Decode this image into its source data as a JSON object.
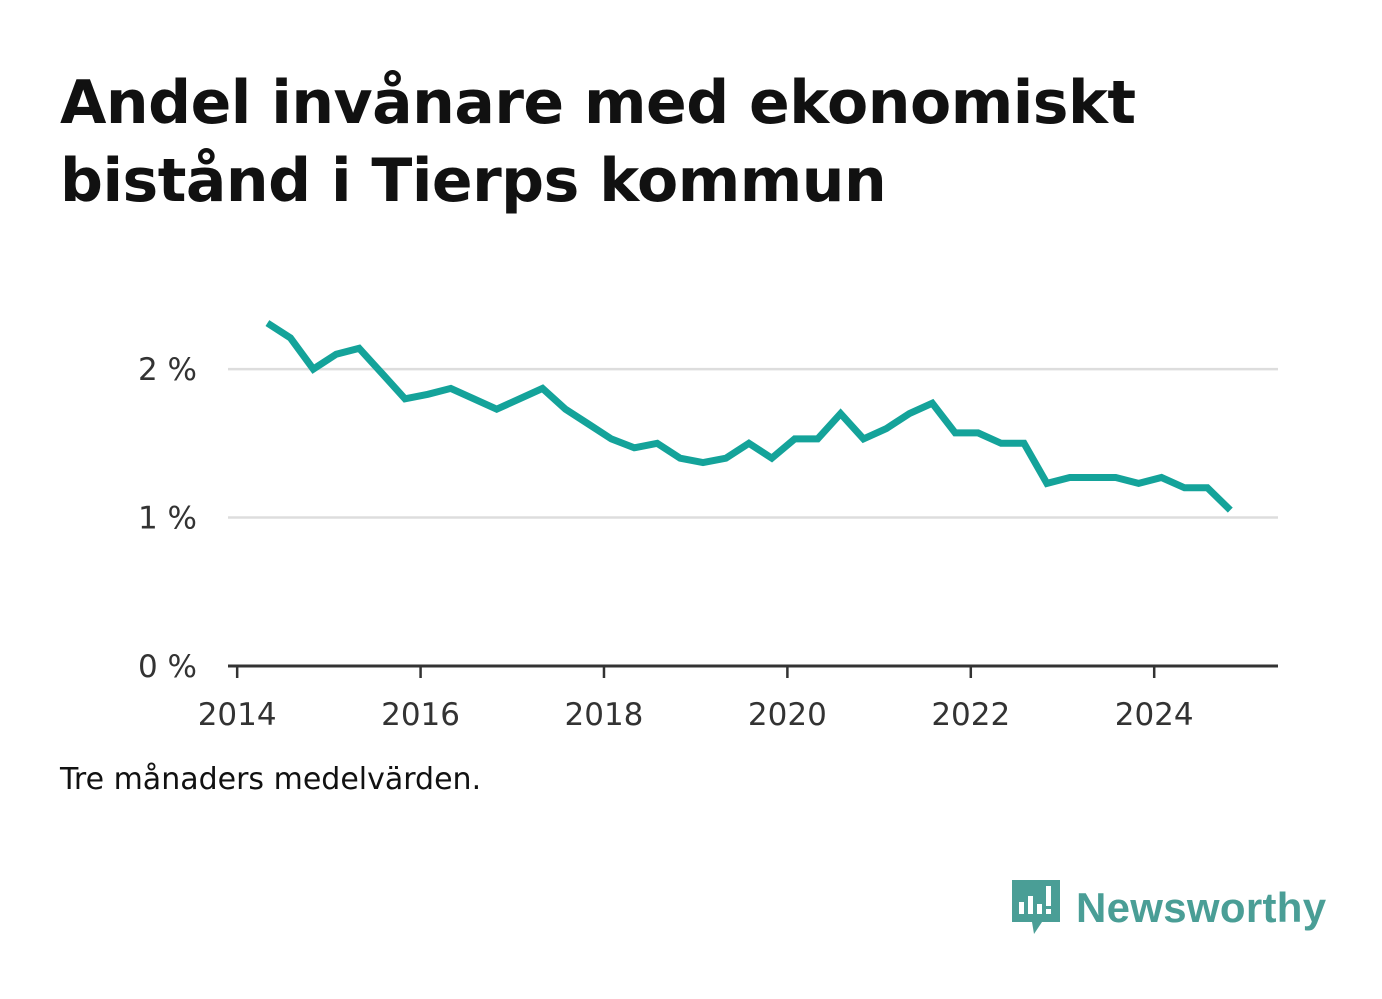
{
  "title": "Andel invånare med ekonomiskt bistånd i Tierps kommun",
  "note": "Tre månaders medelvärden.",
  "brand": {
    "name": "Newsworthy",
    "color": "#4a9e96"
  },
  "colors": {
    "line": "#14a39a",
    "grid": "#dddddd",
    "axis": "#333333"
  },
  "chart_data": {
    "type": "line",
    "title": "Andel invånare med ekonomiskt bistånd i Tierps kommun",
    "xlabel": "",
    "ylabel": "",
    "xlim": [
      2013.9,
      2025.35
    ],
    "ylim": [
      0,
      2.6
    ],
    "y_ticks": [
      {
        "value": 0,
        "label": "0 %"
      },
      {
        "value": 1,
        "label": "1 %"
      },
      {
        "value": 2,
        "label": "2 %"
      }
    ],
    "x_ticks": [
      {
        "value": 2014,
        "label": "2014"
      },
      {
        "value": 2016,
        "label": "2016"
      },
      {
        "value": 2018,
        "label": "2018"
      },
      {
        "value": 2020,
        "label": "2020"
      },
      {
        "value": 2022,
        "label": "2022"
      },
      {
        "value": 2024,
        "label": "2024"
      }
    ],
    "series": [
      {
        "name": "Andel invånare med ekonomiskt bistånd",
        "unit": "%",
        "points": [
          [
            2014.33,
            2.31
          ],
          [
            2014.58,
            2.21
          ],
          [
            2014.83,
            2.0
          ],
          [
            2015.08,
            2.1
          ],
          [
            2015.33,
            2.14
          ],
          [
            2015.58,
            1.97
          ],
          [
            2015.83,
            1.8
          ],
          [
            2016.08,
            1.83
          ],
          [
            2016.33,
            1.87
          ],
          [
            2016.58,
            1.8
          ],
          [
            2016.83,
            1.73
          ],
          [
            2017.08,
            1.8
          ],
          [
            2017.33,
            1.87
          ],
          [
            2017.58,
            1.73
          ],
          [
            2017.83,
            1.63
          ],
          [
            2018.08,
            1.53
          ],
          [
            2018.33,
            1.47
          ],
          [
            2018.58,
            1.5
          ],
          [
            2018.83,
            1.4
          ],
          [
            2019.08,
            1.37
          ],
          [
            2019.33,
            1.4
          ],
          [
            2019.58,
            1.5
          ],
          [
            2019.83,
            1.4
          ],
          [
            2020.08,
            1.53
          ],
          [
            2020.33,
            1.53
          ],
          [
            2020.58,
            1.7
          ],
          [
            2020.83,
            1.53
          ],
          [
            2021.08,
            1.6
          ],
          [
            2021.33,
            1.7
          ],
          [
            2021.58,
            1.77
          ],
          [
            2021.83,
            1.57
          ],
          [
            2022.08,
            1.57
          ],
          [
            2022.33,
            1.5
          ],
          [
            2022.58,
            1.5
          ],
          [
            2022.83,
            1.23
          ],
          [
            2023.08,
            1.27
          ],
          [
            2023.33,
            1.27
          ],
          [
            2023.58,
            1.27
          ],
          [
            2023.83,
            1.23
          ],
          [
            2024.08,
            1.27
          ],
          [
            2024.33,
            1.2
          ],
          [
            2024.58,
            1.2
          ],
          [
            2024.83,
            1.05
          ]
        ]
      }
    ]
  }
}
